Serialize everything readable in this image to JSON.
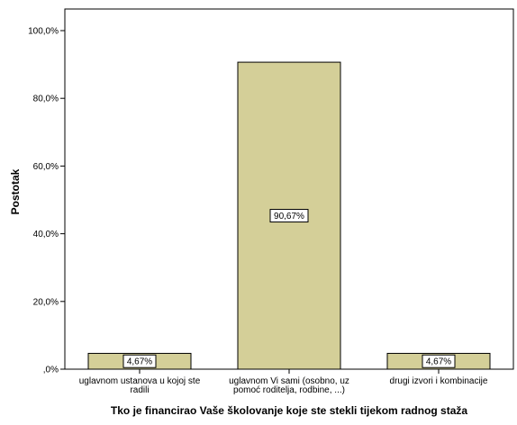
{
  "chart_data": {
    "type": "bar",
    "categories": [
      [
        "uglavnom ustanova u kojoj ste",
        "radili"
      ],
      [
        "uglavnom Vi sami (osobno, uz",
        "pomoć roditelja, rodbine, ...)"
      ],
      [
        "drugi izvori i kombinacije"
      ]
    ],
    "values": [
      4.67,
      90.67,
      4.67
    ],
    "data_labels": [
      "4,67%",
      "90,67%",
      "4,67%"
    ],
    "title": "",
    "xlabel": "Tko je financirao Vaše školovanje koje ste stekli tijekom radnog staža",
    "ylabel": "Postotak",
    "ylim": [
      0,
      100
    ],
    "yticks": [
      0,
      20,
      40,
      60,
      80,
      100
    ],
    "ytick_labels": [
      ",0%",
      "20,0%",
      "40,0%",
      "60,0%",
      "80,0%",
      "100,0%"
    ],
    "grid": false,
    "legend": "none",
    "colors": {
      "bar_fill": "#d4cf98",
      "bar_stroke": "#000000",
      "axis": "#000000",
      "background": "#ffffff"
    }
  }
}
